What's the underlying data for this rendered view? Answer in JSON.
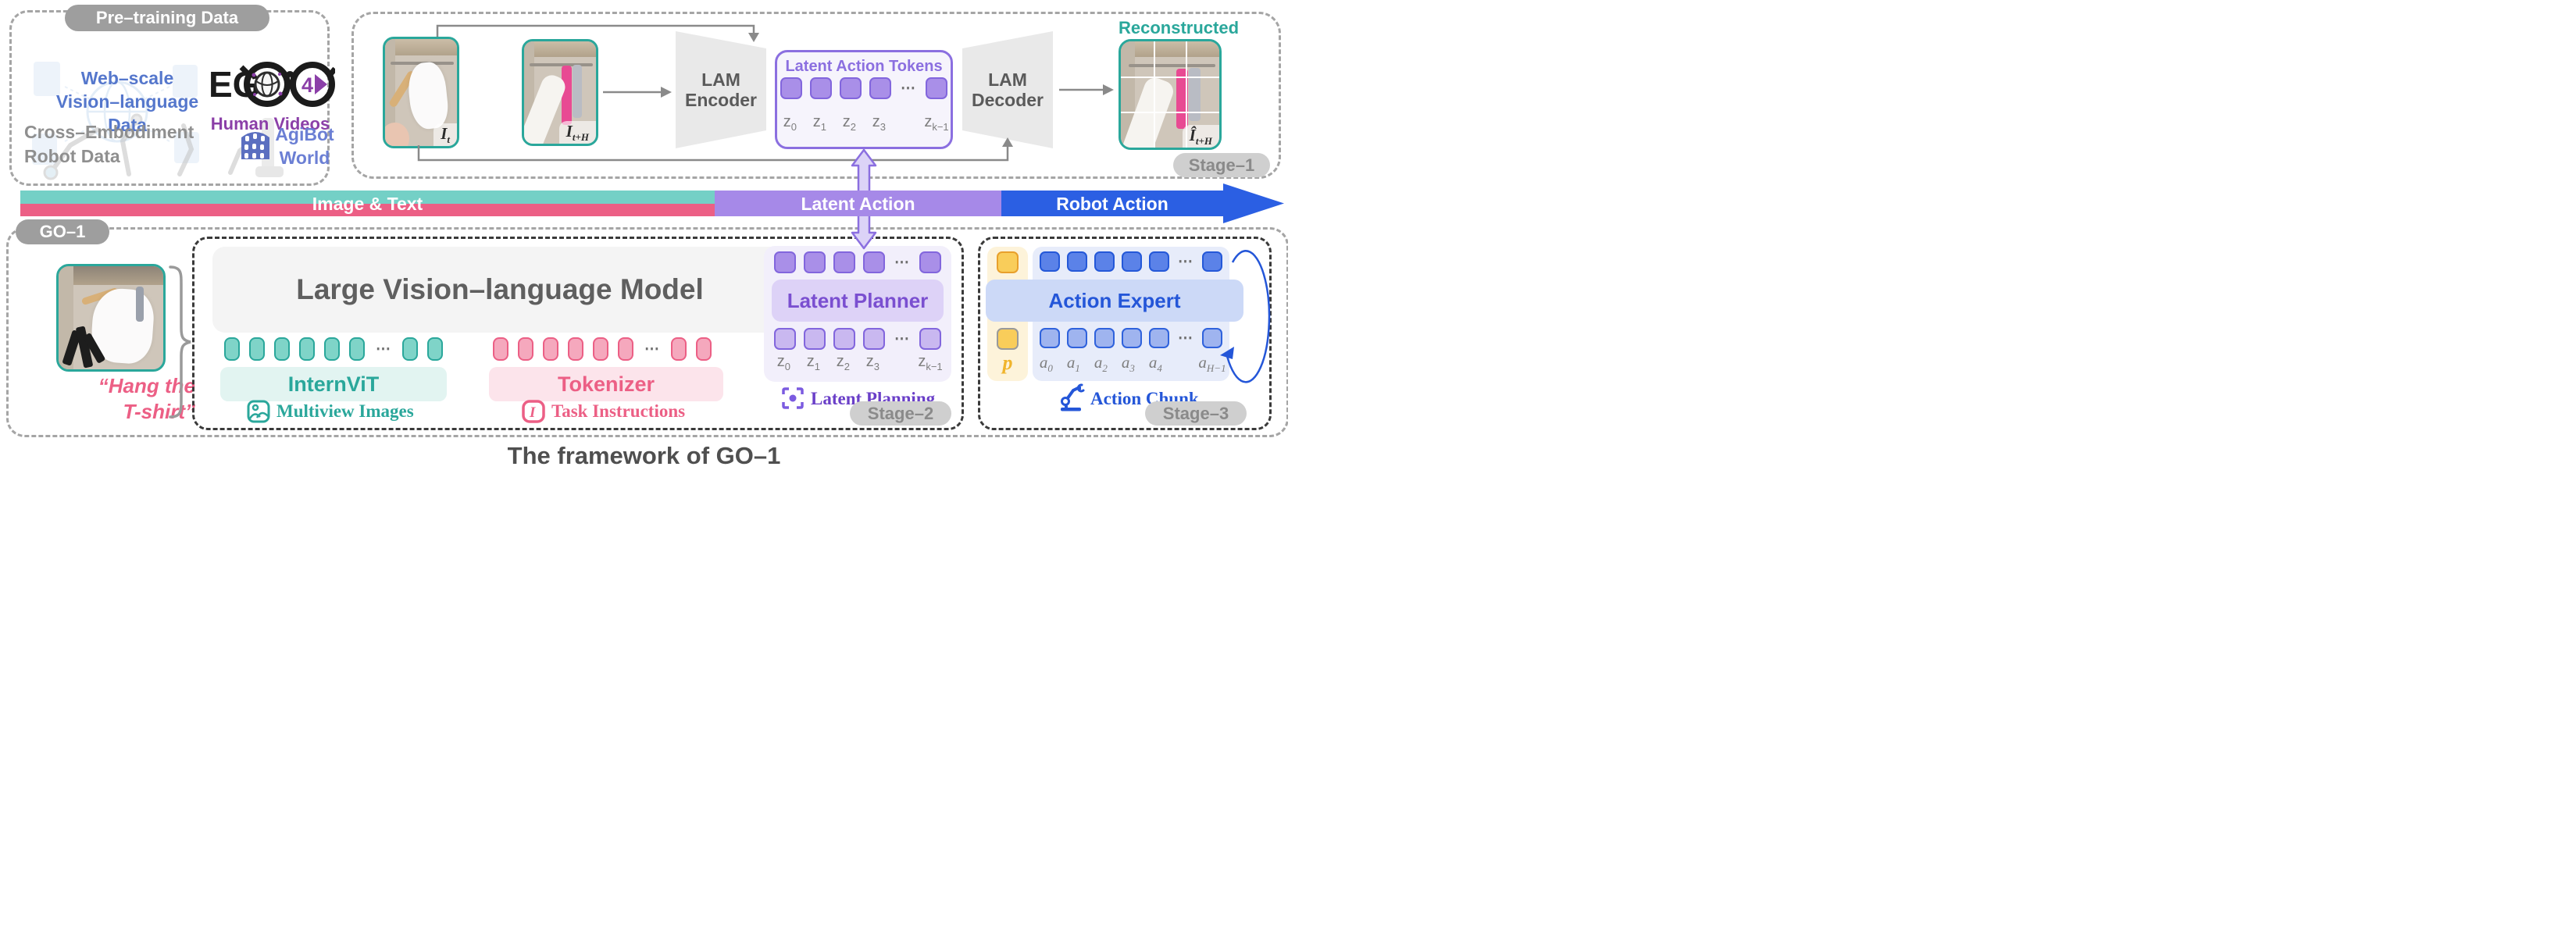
{
  "pretraining": {
    "title": "Pre–training Data",
    "web_scale": {
      "line1": "Web–scale",
      "line2": "Vision–language",
      "line3": "Data"
    },
    "ego": {
      "prefix": "EG",
      "lens_text": "4D",
      "caption": "Human Videos"
    },
    "cross": {
      "line1": "Cross–Embodiment",
      "line2": "Robot Data"
    },
    "agibot": {
      "line1": "AgiBot",
      "line2": "World"
    }
  },
  "stage1": {
    "pill": "Stage–1",
    "encoder": {
      "line1": "LAM",
      "line2": "Encoder"
    },
    "decoder": {
      "line1": "LAM",
      "line2": "Decoder"
    },
    "tokens_title": "Latent Action Tokens",
    "token_row": {
      "before": 4,
      "after": 1
    },
    "z_labels": [
      {
        "base": "z",
        "sub": "0"
      },
      {
        "base": "z",
        "sub": "1"
      },
      {
        "base": "z",
        "sub": "2"
      },
      {
        "base": "z",
        "sub": "3"
      },
      {
        "base": "z",
        "sub": "k−1"
      }
    ],
    "img_t": {
      "base": "I",
      "sub": "t"
    },
    "img_th": {
      "base": "I",
      "sub": "t+H"
    },
    "recon_label": "Reconstructed",
    "img_recon": {
      "base": "Î",
      "sub": "t+H"
    }
  },
  "band": {
    "seg1": "Image & Text",
    "seg2": "Latent Action",
    "seg3": "Robot Action"
  },
  "go1": {
    "pill": "GO–1",
    "instruction": {
      "line1": "“Hang the",
      "line2": "T-shirt”"
    },
    "vlm_title": "Large Vision–language Model",
    "internvit": "InternViT",
    "tokenizer": "Tokenizer",
    "multiview": "Multiview Images",
    "task_instructions": "Task Instructions",
    "vlm_tokens": {
      "before": 6,
      "after": 2
    }
  },
  "stage2": {
    "pill": "Stage–2",
    "planner": "Latent Planner",
    "planning": "Latent Planning",
    "token_row": {
      "before": 4,
      "after": 1
    },
    "z_labels": [
      {
        "base": "z",
        "sub": "0"
      },
      {
        "base": "z",
        "sub": "1"
      },
      {
        "base": "z",
        "sub": "2"
      },
      {
        "base": "z",
        "sub": "3"
      },
      {
        "base": "z",
        "sub": "k−1"
      }
    ]
  },
  "stage3": {
    "pill": "Stage–3",
    "expert": "Action Expert",
    "chunk": "Action Chunk",
    "p_label": "p",
    "token_row": {
      "before": 5,
      "after": 1
    },
    "a_labels": [
      {
        "base": "a",
        "sub": "0"
      },
      {
        "base": "a",
        "sub": "1"
      },
      {
        "base": "a",
        "sub": "2"
      },
      {
        "base": "a",
        "sub": "3"
      },
      {
        "base": "a",
        "sub": "4"
      },
      {
        "base": "a",
        "sub": "H−1"
      }
    ]
  },
  "caption": "The framework of GO–1",
  "ui": {
    "ellipsis": "⋯"
  },
  "colors": {
    "teal": "#2aa79b",
    "teal_band": "#74d0c6",
    "pink": "#ec5f85",
    "purple": "#8b6fe0",
    "purple_band": "#a689e8",
    "blue": "#2456d8",
    "blue_band": "#2b5fe3",
    "yellow": "#f9cd5a",
    "gray_pill": "#9e9e9e",
    "gray_text": "#5a5a5a"
  }
}
